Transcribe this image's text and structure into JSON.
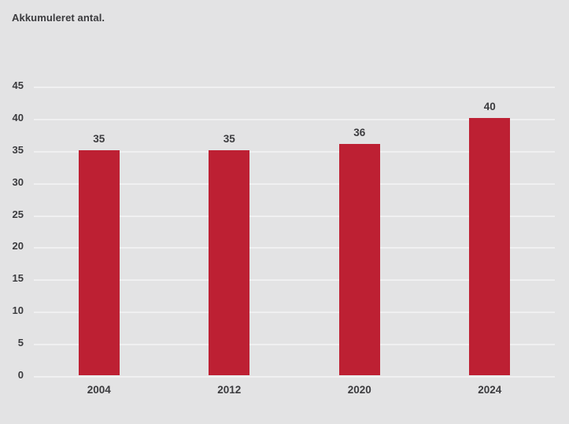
{
  "chart_data": {
    "type": "bar",
    "title": "Akkumuleret antal.",
    "categories": [
      "2004",
      "2012",
      "2020",
      "2024"
    ],
    "values": [
      35,
      35,
      36,
      40
    ],
    "data_labels": [
      "35",
      "35",
      "36",
      "40"
    ],
    "yticks": [
      0,
      5,
      10,
      15,
      20,
      25,
      30,
      35,
      40,
      45
    ],
    "ylim": [
      0,
      45
    ],
    "xlabel": "",
    "ylabel": "",
    "grid": true,
    "legend": "none",
    "bar_color": "#bd2033",
    "background_color": "#e3e3e4",
    "gridline_color": "#f0f0f1",
    "text_color": "#3b3b3e"
  }
}
